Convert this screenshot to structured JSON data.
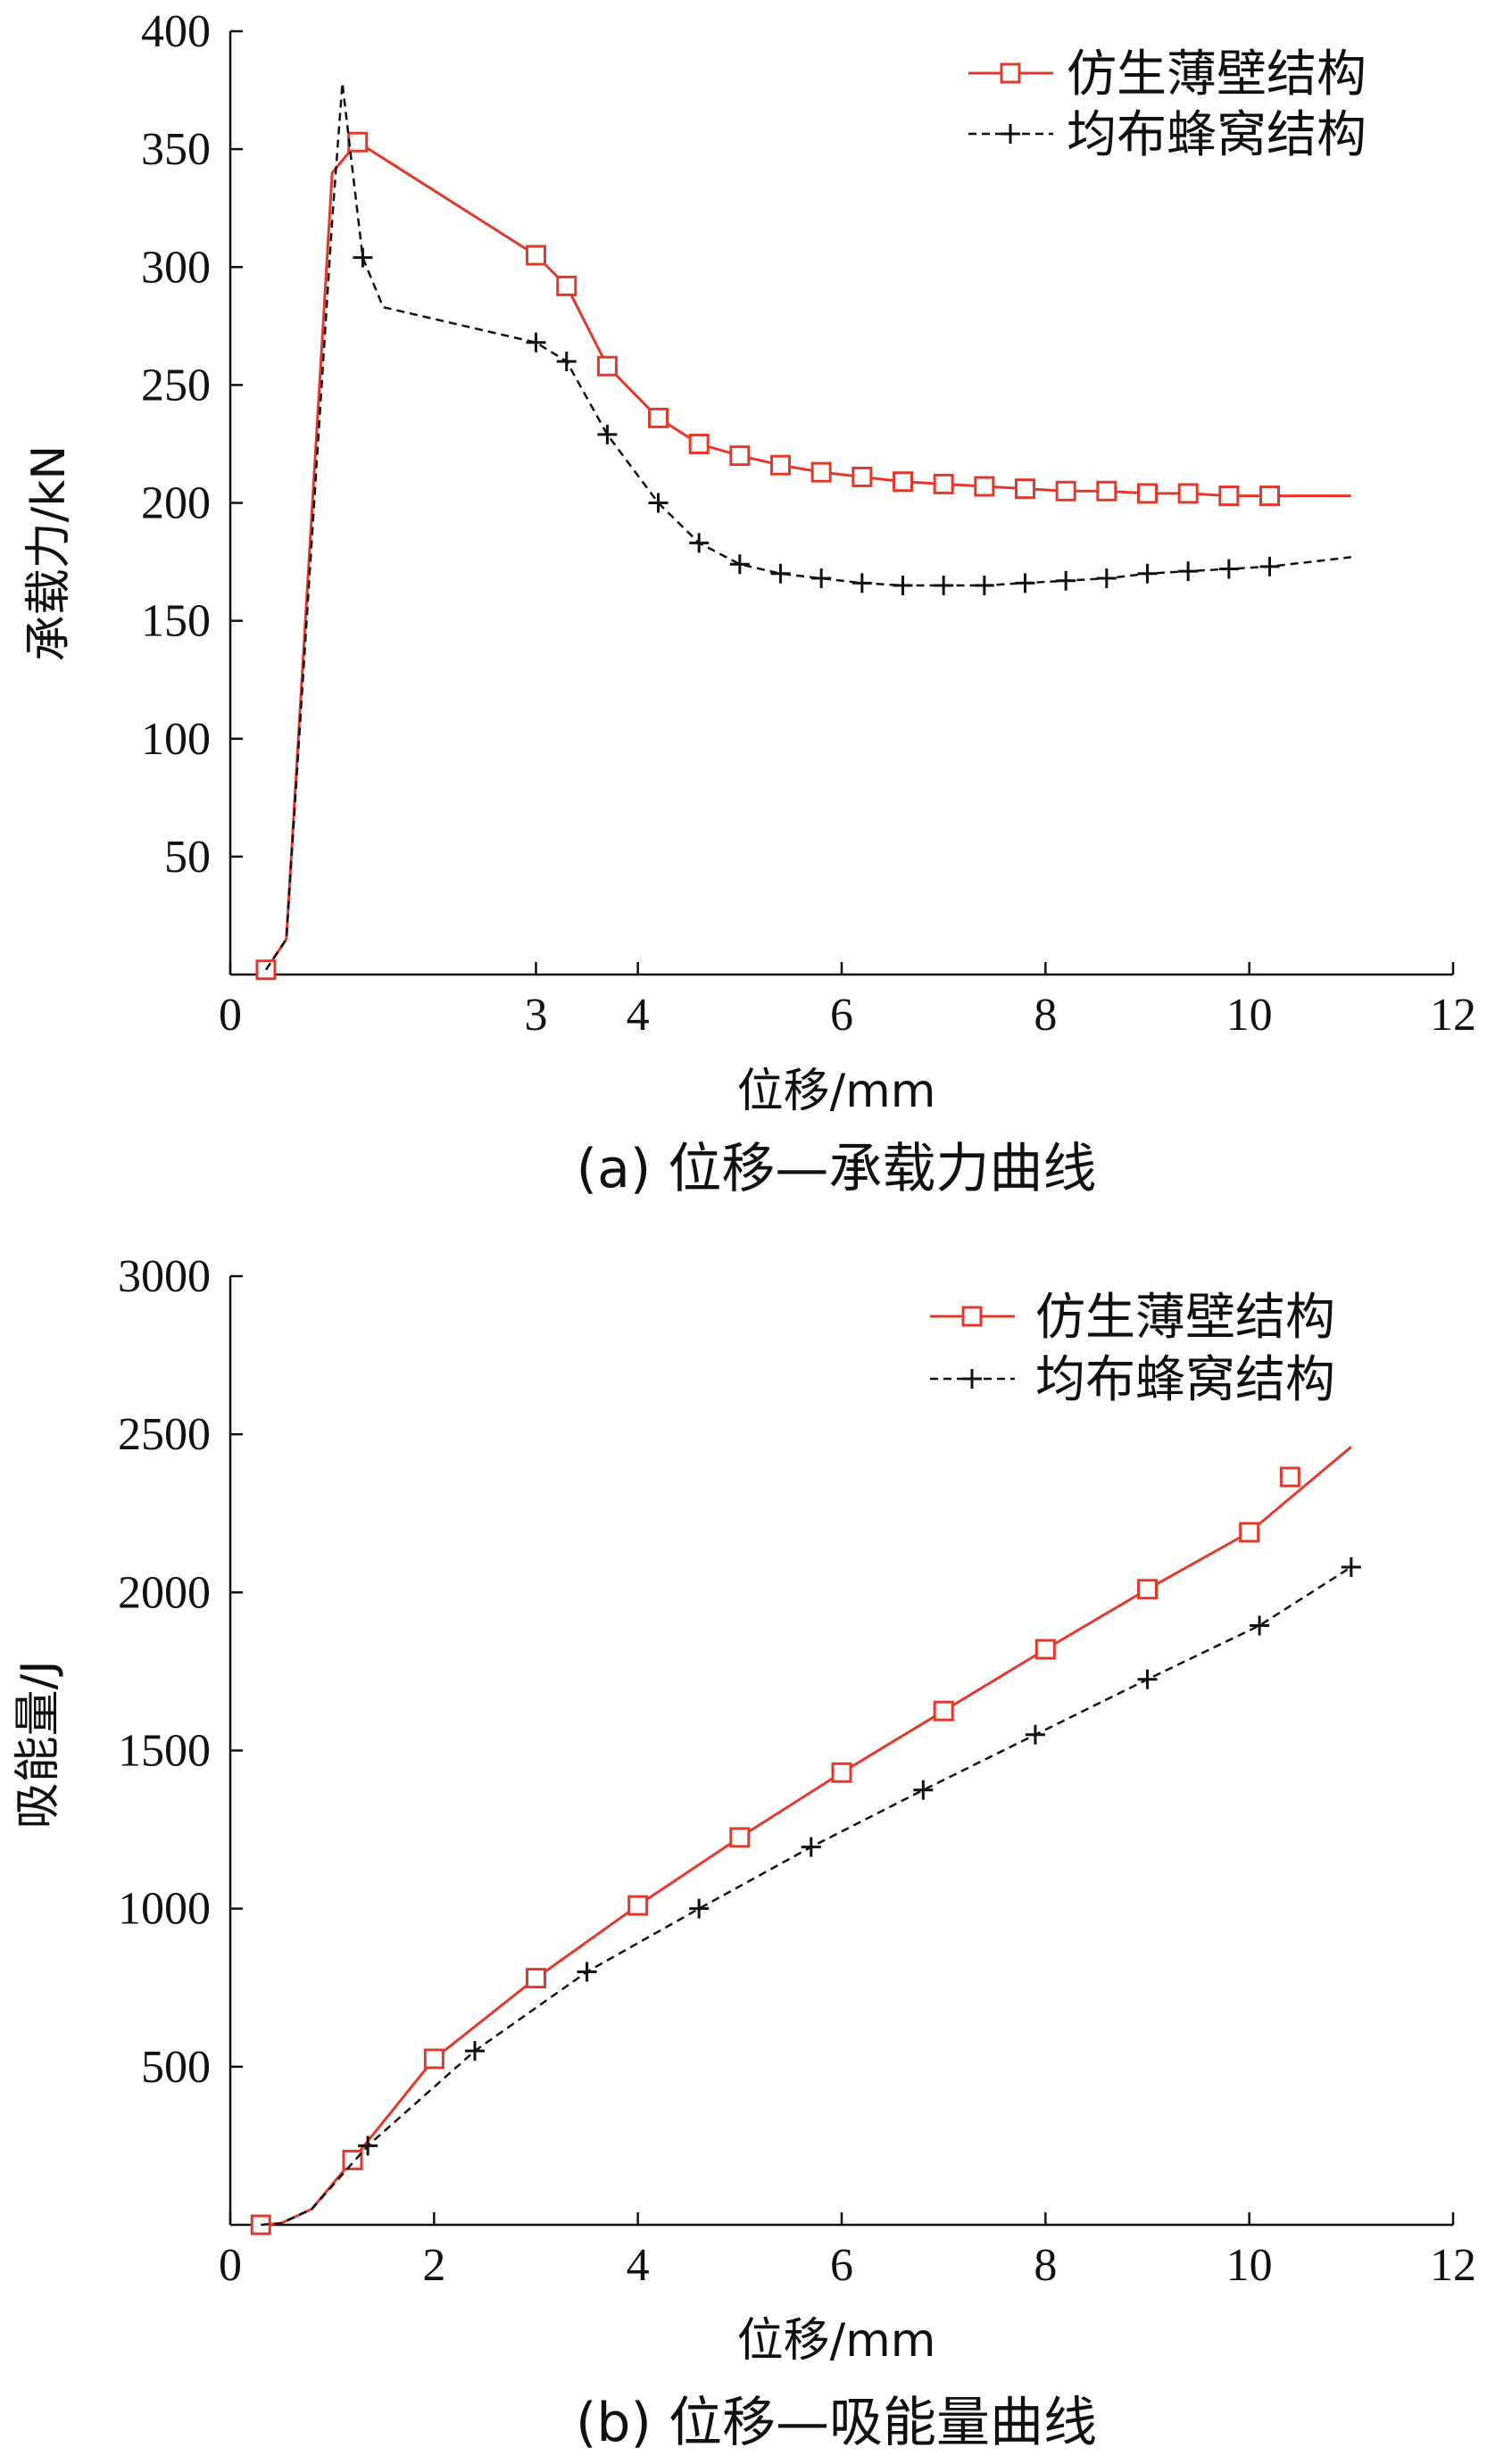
{
  "colors": {
    "red": "#e03a2c",
    "black": "#111111"
  },
  "chart_data": [
    {
      "type": "line",
      "title": "(a)  位移—承载力曲线",
      "xlabel": "位移/mm",
      "ylabel": "承载力/kN",
      "xlim": [
        0,
        12
      ],
      "ylim": [
        0,
        400
      ],
      "xticks": [
        0,
        3,
        4,
        6,
        8,
        10,
        12
      ],
      "yticks": [
        50,
        100,
        150,
        200,
        250,
        300,
        350,
        400
      ],
      "legend_position": "top-right",
      "series": [
        {
          "name": "仿生薄壁结构",
          "color": "#e03a2c",
          "line_style": "solid",
          "marker": "square",
          "x": [
            0.35,
            0.55,
            1.0,
            1.25,
            3.0,
            3.3,
            3.7,
            4.2,
            4.6,
            5.0,
            5.4,
            5.8,
            6.2,
            6.6,
            7.0,
            7.4,
            7.8,
            8.2,
            8.6,
            9.0,
            9.4,
            9.8,
            10.2,
            10.6,
            11.0
          ],
          "y": [
            2,
            15,
            340,
            353,
            305,
            292,
            258,
            236,
            225,
            220,
            216,
            213,
            211,
            209,
            208,
            207,
            206,
            205,
            205,
            204,
            204,
            203,
            203,
            203,
            203
          ],
          "marker_points": [
            [
              0.35,
              2
            ],
            [
              1.25,
              353
            ],
            [
              3.0,
              305
            ],
            [
              3.3,
              292
            ],
            [
              3.7,
              258
            ],
            [
              4.2,
              236
            ],
            [
              4.6,
              225
            ],
            [
              5.0,
              220
            ],
            [
              5.4,
              216
            ],
            [
              5.8,
              213
            ],
            [
              6.2,
              211
            ],
            [
              6.6,
              209
            ],
            [
              7.0,
              208
            ],
            [
              7.4,
              207
            ],
            [
              7.8,
              206
            ],
            [
              8.2,
              205
            ],
            [
              8.6,
              205
            ],
            [
              9.0,
              204
            ],
            [
              9.4,
              204
            ],
            [
              9.8,
              203
            ],
            [
              10.2,
              203
            ]
          ]
        },
        {
          "name": "均布蜂窝结构",
          "color": "#111111",
          "line_style": "dashed",
          "marker": "plus",
          "x": [
            0.35,
            0.55,
            1.0,
            1.1,
            1.3,
            1.5,
            3.0,
            3.3,
            3.7,
            4.2,
            4.6,
            5.0,
            5.4,
            5.8,
            6.2,
            6.6,
            7.0,
            7.4,
            7.8,
            8.2,
            8.6,
            9.0,
            9.4,
            9.8,
            10.2,
            10.6,
            11.0
          ],
          "y": [
            2,
            15,
            320,
            378,
            304,
            283,
            268,
            260,
            229,
            200,
            183,
            174,
            170,
            168,
            166,
            165,
            165,
            165,
            166,
            167,
            168,
            170,
            171,
            172,
            173,
            175,
            177
          ],
          "marker_points": [
            [
              1.3,
              304
            ],
            [
              3.0,
              268
            ],
            [
              3.3,
              260
            ],
            [
              3.7,
              229
            ],
            [
              4.2,
              200
            ],
            [
              4.6,
              183
            ],
            [
              5.0,
              174
            ],
            [
              5.4,
              170
            ],
            [
              5.8,
              168
            ],
            [
              6.2,
              166
            ],
            [
              6.6,
              165
            ],
            [
              7.0,
              165
            ],
            [
              7.4,
              165
            ],
            [
              7.8,
              166
            ],
            [
              8.2,
              167
            ],
            [
              8.6,
              168
            ],
            [
              9.0,
              170
            ],
            [
              9.4,
              171
            ],
            [
              9.8,
              172
            ],
            [
              10.2,
              173
            ]
          ]
        }
      ]
    },
    {
      "type": "line",
      "title": "(b)  位移—吸能量曲线",
      "xlabel": "位移/mm",
      "ylabel": "吸能量/J",
      "xlim": [
        0,
        12
      ],
      "ylim": [
        0,
        3000
      ],
      "xticks": [
        0,
        2,
        4,
        6,
        8,
        10,
        12
      ],
      "yticks": [
        500,
        1000,
        1500,
        2000,
        2500,
        3000
      ],
      "legend_position": "top-right",
      "series": [
        {
          "name": "仿生薄壁结构",
          "color": "#e03a2c",
          "line_style": "solid",
          "marker": "square",
          "x": [
            0.3,
            0.5,
            0.8,
            1.2,
            2.0,
            3.0,
            4.0,
            5.0,
            6.0,
            7.0,
            8.0,
            9.0,
            10.0,
            11.0
          ],
          "y": [
            0,
            5,
            50,
            205,
            525,
            780,
            1010,
            1225,
            1430,
            1625,
            1820,
            2010,
            2190,
            2460
          ],
          "marker_points": [
            [
              0.3,
              0
            ],
            [
              1.2,
              205
            ],
            [
              2.0,
              525
            ],
            [
              3.0,
              780
            ],
            [
              4.0,
              1010
            ],
            [
              5.0,
              1225
            ],
            [
              6.0,
              1430
            ],
            [
              7.0,
              1625
            ],
            [
              8.0,
              1820
            ],
            [
              9.0,
              2010
            ],
            [
              10.0,
              2190
            ],
            [
              10.4,
              2365
            ]
          ]
        },
        {
          "name": "均布蜂窝结构",
          "color": "#111111",
          "line_style": "dashed",
          "marker": "plus",
          "x": [
            0.3,
            0.5,
            0.8,
            1.35,
            2.4,
            3.5,
            4.6,
            5.7,
            6.8,
            7.9,
            9.0,
            10.1,
            11.0
          ],
          "y": [
            0,
            5,
            50,
            250,
            550,
            800,
            1000,
            1195,
            1375,
            1550,
            1725,
            1895,
            2080
          ],
          "marker_points": [
            [
              1.35,
              250
            ],
            [
              2.4,
              550
            ],
            [
              3.5,
              800
            ],
            [
              4.6,
              1000
            ],
            [
              5.7,
              1195
            ],
            [
              6.8,
              1375
            ],
            [
              7.9,
              1550
            ],
            [
              9.0,
              1725
            ],
            [
              10.1,
              1895
            ],
            [
              11.0,
              2080
            ]
          ]
        }
      ]
    }
  ]
}
